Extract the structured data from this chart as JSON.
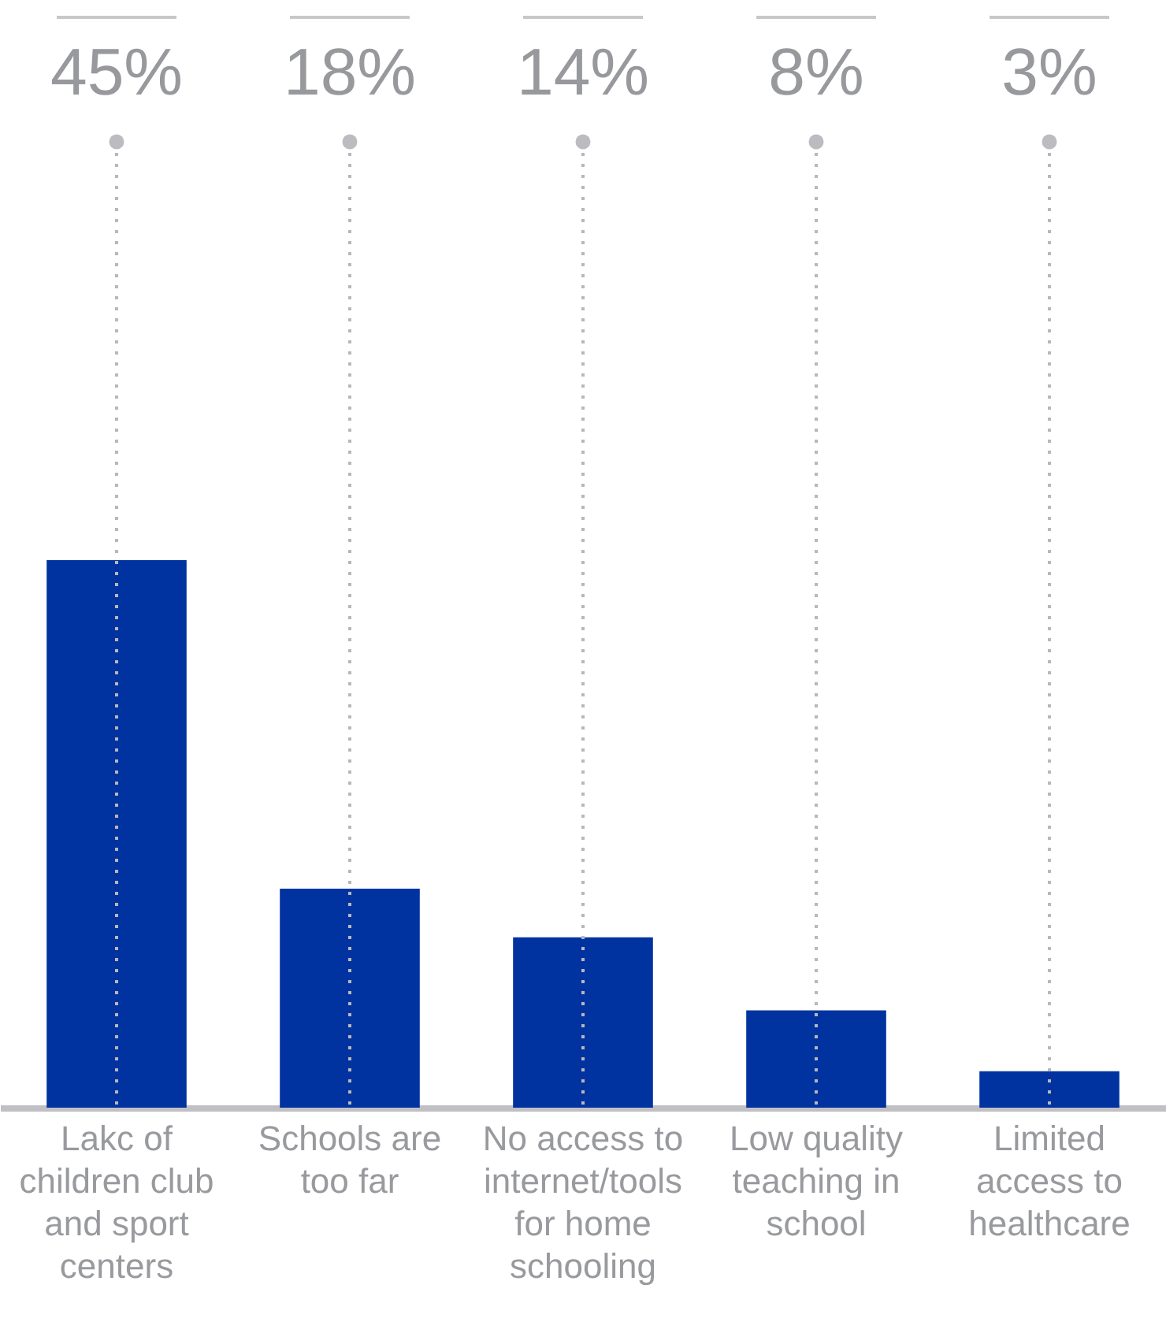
{
  "chart_data": {
    "type": "bar",
    "grid": "x",
    "categories": [
      "Lakc of children club and sport centers",
      "Schools are too far",
      "No access to internet/tools for home schooling",
      "Low quality teaching in school",
      "Limited access to healthcare"
    ],
    "values": [
      45,
      18,
      14,
      8,
      3
    ],
    "value_labels": [
      "45%",
      "18%",
      "14%",
      "8%",
      "3%"
    ],
    "color": "#00339f"
  }
}
